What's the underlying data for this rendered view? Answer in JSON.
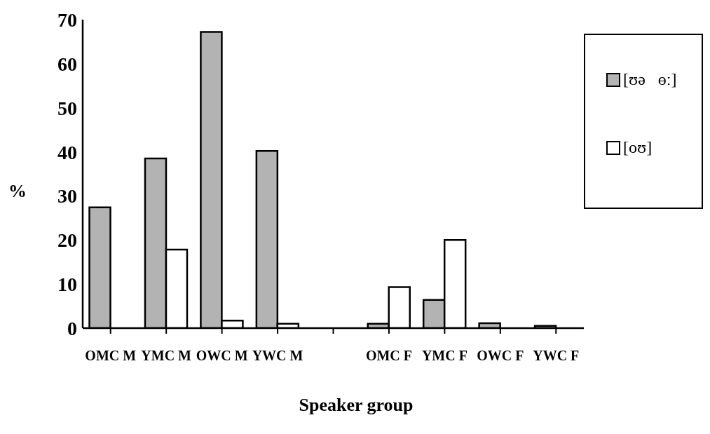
{
  "chart_data": {
    "type": "bar",
    "xlabel": "Speaker group",
    "ylabel": "%",
    "categories": [
      "OMC M",
      "YMC M",
      "OWC M",
      "YWC M",
      null,
      "OMC F",
      "YMC F",
      "OWC F",
      "YWC F"
    ],
    "series": [
      {
        "name": "[ʊə   ɵː]",
        "color": "#b3b3b3",
        "values": [
          27.4,
          38.5,
          67.2,
          40.2,
          0,
          1.0,
          6.4,
          1.1,
          0.5
        ]
      },
      {
        "name": "[oʊ]",
        "color": "#ffffff",
        "values": [
          0,
          17.8,
          1.7,
          1.0,
          0,
          9.3,
          20.0,
          0,
          0
        ]
      }
    ],
    "ylim": [
      0,
      70
    ],
    "yticks": [
      0,
      10,
      20,
      30,
      40,
      50,
      60,
      70
    ],
    "grid": false,
    "legend": "top right"
  }
}
